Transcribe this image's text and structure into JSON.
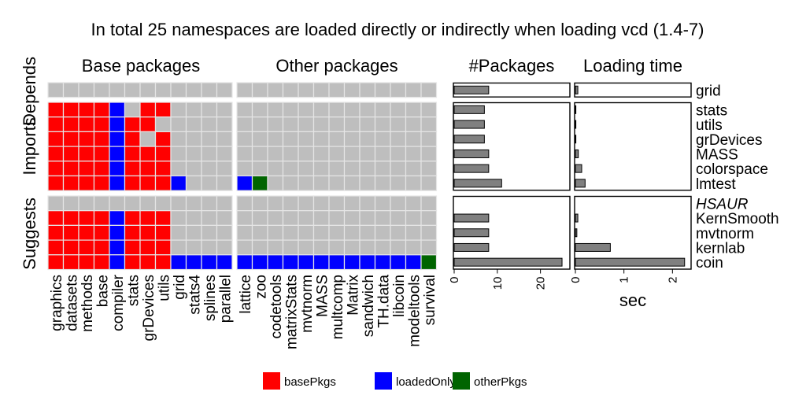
{
  "chart_data": {
    "type": "heatmap",
    "title": "In total 25 namespaces are loaded directly or indirectly when loading vcd (1.4-7)",
    "facet_columns": [
      "Base packages",
      "Other packages"
    ],
    "facet_rows": [
      "Depends",
      "Imports",
      "Suggests"
    ],
    "columns_base": [
      "graphics",
      "datasets",
      "methods",
      "base",
      "compiler",
      "stats",
      "grDevices",
      "utils",
      "grid",
      "stats4",
      "splines",
      "parallel"
    ],
    "columns_other": [
      "lattice",
      "zoo",
      "codetools",
      "matrixStats",
      "mvtnorm",
      "MASS",
      "multcomp",
      "Matrix",
      "sandwich",
      "TH.data",
      "libcoin",
      "modeltools",
      "survival"
    ],
    "groups": [
      {
        "name": "Depends",
        "packages": [
          {
            "name": "grid",
            "base": "............",
            "other": ".............",
            "n_packages": 8,
            "load_time": 0.05
          }
        ]
      },
      {
        "name": "Imports",
        "packages": [
          {
            "name": "stats",
            "base": "rrrrb.rr....",
            "other": ".............",
            "n_packages": 7,
            "load_time": 0.0
          },
          {
            "name": "utils",
            "base": "rrrrbrr.....",
            "other": ".............",
            "n_packages": 7,
            "load_time": 0.0
          },
          {
            "name": "grDevices",
            "base": "rrrrbr.r....",
            "other": ".............",
            "n_packages": 7,
            "load_time": 0.0
          },
          {
            "name": "MASS",
            "base": "rrrrbrrr....",
            "other": ".............",
            "n_packages": 8,
            "load_time": 0.06
          },
          {
            "name": "colorspace",
            "base": "rrrrbrrr....",
            "other": ".............",
            "n_packages": 8,
            "load_time": 0.13
          },
          {
            "name": "lmtest",
            "base": "rrrrbrrrb...",
            "other": "bg...........",
            "n_packages": 11,
            "load_time": 0.2
          }
        ]
      },
      {
        "name": "Suggests",
        "packages": [
          {
            "name": "HSAUR",
            "missing": true,
            "base": "............",
            "other": ".............",
            "n_packages": null,
            "load_time": null
          },
          {
            "name": "KernSmooth",
            "base": "rrrrbrrr....",
            "other": ".............",
            "n_packages": 8,
            "load_time": 0.05
          },
          {
            "name": "mvtnorm",
            "base": "rrrrbrrr....",
            "other": ".............",
            "n_packages": 8,
            "load_time": 0.03
          },
          {
            "name": "kernlab",
            "base": "rrrrbrrr....",
            "other": ".............",
            "n_packages": 8,
            "load_time": 0.72
          },
          {
            "name": "coin",
            "base": "rrrrbrrrbbbb",
            "other": "bbbbbbbbbbbbg",
            "n_packages": 25,
            "load_time": 2.25
          }
        ]
      }
    ],
    "packages_panel": {
      "title": "#Packages",
      "ticks": [
        0,
        10,
        20
      ],
      "xlim": [
        0,
        27
      ]
    },
    "time_panel": {
      "title": "Loading time",
      "ticks": [
        0,
        1,
        2
      ],
      "xlim": [
        0,
        2.4
      ],
      "xlabel": "sec"
    },
    "legend": [
      {
        "key": "r",
        "label": "basePkgs",
        "color": "#FF0000"
      },
      {
        "key": "b",
        "label": "loadedOnly",
        "color": "#0000FF"
      },
      {
        "key": "g",
        "label": "otherPkgs",
        "color": "#006400"
      }
    ],
    "colors": {
      "empty": "#BEBEBE",
      "bar": "#808080",
      "missing_label": "#AAAAAA"
    }
  }
}
